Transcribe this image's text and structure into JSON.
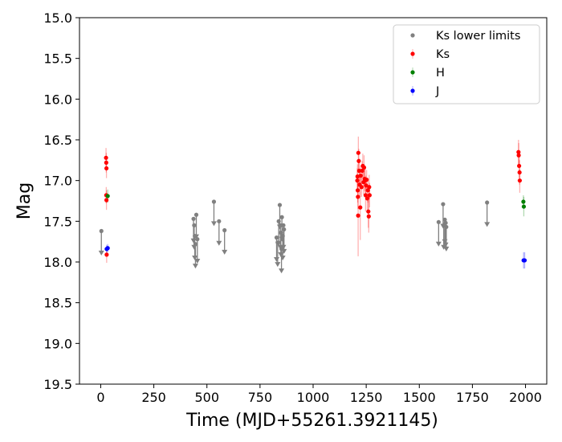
{
  "chart_data": {
    "type": "scatter",
    "title": "",
    "xlabel": "Time (MJD+55261.3921145)",
    "ylabel": "Mag",
    "xlim": [
      -100,
      2100
    ],
    "ylim": [
      19.5,
      15.0
    ],
    "y_inverted": true,
    "grid": false,
    "legend_position": "top-right",
    "x_ticks": [
      0,
      250,
      500,
      750,
      1000,
      1250,
      1500,
      1750,
      2000
    ],
    "x_tick_labels": [
      "0",
      "250",
      "500",
      "750",
      "1000",
      "1250",
      "1500",
      "1750",
      "2000"
    ],
    "y_ticks": [
      15.0,
      15.5,
      16.0,
      16.5,
      17.0,
      17.5,
      18.0,
      18.5,
      19.0,
      19.5
    ],
    "y_tick_labels": [
      "15.0",
      "15.5",
      "16.0",
      "16.5",
      "17.0",
      "17.5",
      "18.0",
      "18.5",
      "19.0",
      "19.5"
    ],
    "series": [
      {
        "name": "Ks lower limits",
        "color": "#808080",
        "marker": "point-with-down-arrow",
        "points": [
          {
            "x": 3,
            "y": 17.62
          },
          {
            "x": 437,
            "y": 17.47
          },
          {
            "x": 440,
            "y": 17.55
          },
          {
            "x": 443,
            "y": 17.68
          },
          {
            "x": 446,
            "y": 17.78
          },
          {
            "x": 450,
            "y": 17.42
          },
          {
            "x": 455,
            "y": 17.72
          },
          {
            "x": 533,
            "y": 17.26
          },
          {
            "x": 557,
            "y": 17.5
          },
          {
            "x": 583,
            "y": 17.61
          },
          {
            "x": 828,
            "y": 17.7
          },
          {
            "x": 833,
            "y": 17.76
          },
          {
            "x": 838,
            "y": 17.5
          },
          {
            "x": 843,
            "y": 17.3
          },
          {
            "x": 846,
            "y": 17.55
          },
          {
            "x": 848,
            "y": 17.64
          },
          {
            "x": 851,
            "y": 17.84
          },
          {
            "x": 853,
            "y": 17.45
          },
          {
            "x": 857,
            "y": 17.68
          },
          {
            "x": 860,
            "y": 17.55
          },
          {
            "x": 863,
            "y": 17.6
          },
          {
            "x": 1591,
            "y": 17.51
          },
          {
            "x": 1612,
            "y": 17.29
          },
          {
            "x": 1615,
            "y": 17.55
          },
          {
            "x": 1620,
            "y": 17.48
          },
          {
            "x": 1624,
            "y": 17.52
          },
          {
            "x": 1627,
            "y": 17.57
          },
          {
            "x": 1819,
            "y": 17.27
          }
        ]
      },
      {
        "name": "Ks",
        "color": "#ff0000",
        "marker": "point-with-errorbar",
        "points": [
          {
            "x": 25,
            "y": 16.72,
            "err": 0.12
          },
          {
            "x": 26,
            "y": 16.78,
            "err": 0.12
          },
          {
            "x": 27,
            "y": 16.85,
            "err": 0.12
          },
          {
            "x": 26,
            "y": 17.18,
            "err": 0.1
          },
          {
            "x": 27,
            "y": 17.24,
            "err": 0.12
          },
          {
            "x": 28,
            "y": 17.91,
            "err": 0.1
          },
          {
            "x": 1208,
            "y": 17.0,
            "err": 0.15
          },
          {
            "x": 1209,
            "y": 16.95,
            "err": 0.15
          },
          {
            "x": 1210,
            "y": 17.12,
            "err": 0.15
          },
          {
            "x": 1211,
            "y": 17.2,
            "err": 0.15
          },
          {
            "x": 1212,
            "y": 17.43,
            "err": 0.5
          },
          {
            "x": 1213,
            "y": 16.66,
            "err": 0.2
          },
          {
            "x": 1215,
            "y": 16.76,
            "err": 0.15
          },
          {
            "x": 1217,
            "y": 16.88,
            "err": 0.15
          },
          {
            "x": 1219,
            "y": 17.05,
            "err": 0.15
          },
          {
            "x": 1222,
            "y": 17.33,
            "err": 0.4
          },
          {
            "x": 1224,
            "y": 16.94,
            "err": 0.12
          },
          {
            "x": 1228,
            "y": 17.08,
            "err": 0.12
          },
          {
            "x": 1231,
            "y": 16.88,
            "err": 0.12
          },
          {
            "x": 1234,
            "y": 16.82,
            "err": 0.15
          },
          {
            "x": 1237,
            "y": 17.02,
            "err": 0.15
          },
          {
            "x": 1240,
            "y": 16.84,
            "err": 0.15
          },
          {
            "x": 1243,
            "y": 16.98,
            "err": 0.15
          },
          {
            "x": 1245,
            "y": 17.0,
            "err": 0.15
          },
          {
            "x": 1247,
            "y": 17.18,
            "err": 0.2
          },
          {
            "x": 1249,
            "y": 17.06,
            "err": 0.12
          },
          {
            "x": 1252,
            "y": 16.99,
            "err": 0.12
          },
          {
            "x": 1255,
            "y": 17.22,
            "err": 0.15
          },
          {
            "x": 1258,
            "y": 17.12,
            "err": 0.15
          },
          {
            "x": 1260,
            "y": 17.38,
            "err": 0.2
          },
          {
            "x": 1262,
            "y": 17.44,
            "err": 0.2
          },
          {
            "x": 1264,
            "y": 17.08,
            "err": 0.15
          },
          {
            "x": 1266,
            "y": 17.18,
            "err": 0.15
          },
          {
            "x": 1967,
            "y": 16.65,
            "err": 0.15
          },
          {
            "x": 1968,
            "y": 16.69,
            "err": 0.15
          },
          {
            "x": 1970,
            "y": 16.82,
            "err": 0.15
          },
          {
            "x": 1972,
            "y": 16.9,
            "err": 0.15
          },
          {
            "x": 1973,
            "y": 17.0,
            "err": 0.15
          }
        ]
      },
      {
        "name": "H",
        "color": "#008000",
        "marker": "point-with-errorbar",
        "points": [
          {
            "x": 33,
            "y": 17.19,
            "err": 0.08
          },
          {
            "x": 1990,
            "y": 17.26,
            "err": 0.08
          },
          {
            "x": 1992,
            "y": 17.32,
            "err": 0.12
          }
        ]
      },
      {
        "name": "J",
        "color": "#0000ff",
        "marker": "point-with-errorbar",
        "points": [
          {
            "x": 28,
            "y": 17.84,
            "err": 0.05
          },
          {
            "x": 33,
            "y": 17.83,
            "err": 0.05
          },
          {
            "x": 1991,
            "y": 17.98,
            "err": 0.1
          },
          {
            "x": 1996,
            "y": 17.98,
            "err": 0.1
          }
        ]
      }
    ]
  }
}
